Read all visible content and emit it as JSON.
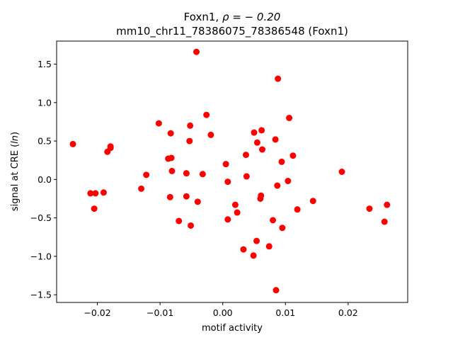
{
  "chart_data": {
    "type": "scatter",
    "title_line1_prefix": "Foxn1, ",
    "title_line1_math": "ρ = − 0.20",
    "title_line2": "mm10_chr11_78386075_78386548 (Foxn1)",
    "xlabel": "motif activity",
    "ylabel_prefix": "signal at CRE (",
    "ylabel_math": "ln",
    "ylabel_suffix": ")",
    "xlim": [
      -0.0265,
      0.0295
    ],
    "ylim": [
      -1.6,
      1.8
    ],
    "x_ticks": [
      -0.02,
      -0.01,
      0.0,
      0.01,
      0.02
    ],
    "x_tick_labels": [
      "−0.02",
      "−0.01",
      "0.00",
      "0.01",
      "0.02"
    ],
    "y_ticks": [
      -1.5,
      -1.0,
      -0.5,
      0.0,
      0.5,
      1.0,
      1.5
    ],
    "y_tick_labels": [
      "−1.5",
      "−1.0",
      "−0.5",
      "0.0",
      "0.5",
      "1.0",
      "1.5"
    ],
    "grid": false,
    "marker_color": "#ff0000",
    "points": [
      {
        "x": -0.0239,
        "y": 0.46
      },
      {
        "x": -0.0211,
        "y": -0.18
      },
      {
        "x": -0.0203,
        "y": -0.18
      },
      {
        "x": -0.0205,
        "y": -0.38
      },
      {
        "x": -0.019,
        "y": -0.17
      },
      {
        "x": -0.0184,
        "y": 0.36
      },
      {
        "x": -0.0179,
        "y": 0.41
      },
      {
        "x": -0.0179,
        "y": 0.43
      },
      {
        "x": -0.013,
        "y": -0.12
      },
      {
        "x": -0.0122,
        "y": 0.06
      },
      {
        "x": -0.0102,
        "y": 0.73
      },
      {
        "x": -0.0087,
        "y": 0.27
      },
      {
        "x": -0.0082,
        "y": 0.28
      },
      {
        "x": -0.0083,
        "y": 0.6
      },
      {
        "x": -0.0081,
        "y": 0.11
      },
      {
        "x": -0.0084,
        "y": -0.23
      },
      {
        "x": -0.007,
        "y": -0.54
      },
      {
        "x": -0.0058,
        "y": 0.08
      },
      {
        "x": -0.0058,
        "y": -0.22
      },
      {
        "x": -0.0053,
        "y": 0.5
      },
      {
        "x": -0.0052,
        "y": 0.7
      },
      {
        "x": -0.0051,
        "y": -0.6
      },
      {
        "x": -0.004,
        "y": -0.29
      },
      {
        "x": -0.0042,
        "y": 1.66
      },
      {
        "x": -0.0032,
        "y": 0.07
      },
      {
        "x": -0.0026,
        "y": 0.84
      },
      {
        "x": -0.0019,
        "y": 0.58
      },
      {
        "x": 0.0005,
        "y": 0.2
      },
      {
        "x": 0.0008,
        "y": -0.03
      },
      {
        "x": 0.0008,
        "y": -0.52
      },
      {
        "x": 0.002,
        "y": -0.33
      },
      {
        "x": 0.0023,
        "y": -0.43
      },
      {
        "x": 0.0033,
        "y": -0.91
      },
      {
        "x": 0.0037,
        "y": 0.32
      },
      {
        "x": 0.0038,
        "y": 0.04
      },
      {
        "x": 0.005,
        "y": 0.61
      },
      {
        "x": 0.0049,
        "y": -0.99
      },
      {
        "x": 0.0055,
        "y": 0.48
      },
      {
        "x": 0.0054,
        "y": -0.8
      },
      {
        "x": 0.0062,
        "y": 0.64
      },
      {
        "x": 0.0063,
        "y": 0.39
      },
      {
        "x": 0.0061,
        "y": -0.21
      },
      {
        "x": 0.006,
        "y": -0.25
      },
      {
        "x": 0.0074,
        "y": -0.87
      },
      {
        "x": 0.008,
        "y": -0.53
      },
      {
        "x": 0.0084,
        "y": 0.52
      },
      {
        "x": 0.0088,
        "y": 1.31
      },
      {
        "x": 0.0087,
        "y": -0.08
      },
      {
        "x": 0.0085,
        "y": -1.44
      },
      {
        "x": 0.0094,
        "y": 0.23
      },
      {
        "x": 0.0095,
        "y": -0.63
      },
      {
        "x": 0.0106,
        "y": 0.8
      },
      {
        "x": 0.0104,
        "y": -0.02
      },
      {
        "x": 0.0112,
        "y": 0.31
      },
      {
        "x": 0.0119,
        "y": -0.39
      },
      {
        "x": 0.0144,
        "y": -0.28
      },
      {
        "x": 0.019,
        "y": 0.1
      },
      {
        "x": 0.0234,
        "y": -0.38
      },
      {
        "x": 0.0258,
        "y": -0.55
      },
      {
        "x": 0.0262,
        "y": -0.33
      }
    ]
  }
}
